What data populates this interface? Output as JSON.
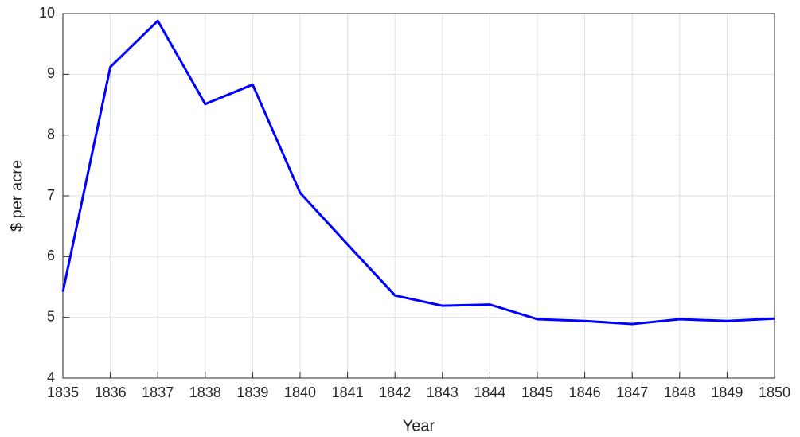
{
  "chart_data": {
    "type": "line",
    "xlabel": "Year",
    "ylabel": "$ per acre",
    "x": [
      1835,
      1836,
      1837,
      1838,
      1839,
      1840,
      1841,
      1842,
      1843,
      1844,
      1845,
      1846,
      1847,
      1848,
      1849,
      1850
    ],
    "series": [
      {
        "color": "#0000ff",
        "values": [
          5.42,
          9.12,
          9.88,
          8.51,
          8.83,
          7.05,
          6.2,
          5.36,
          5.19,
          5.21,
          4.97,
          4.94,
          4.89,
          4.97,
          4.94,
          4.98
        ]
      }
    ],
    "xlim": [
      1835,
      1850
    ],
    "xticks": [
      1835,
      1836,
      1837,
      1838,
      1839,
      1840,
      1841,
      1842,
      1843,
      1844,
      1845,
      1846,
      1847,
      1848,
      1849,
      1850
    ],
    "ylim": [
      4,
      10
    ],
    "yticks": [
      4,
      5,
      6,
      7,
      8,
      9,
      10
    ],
    "grid": true
  }
}
